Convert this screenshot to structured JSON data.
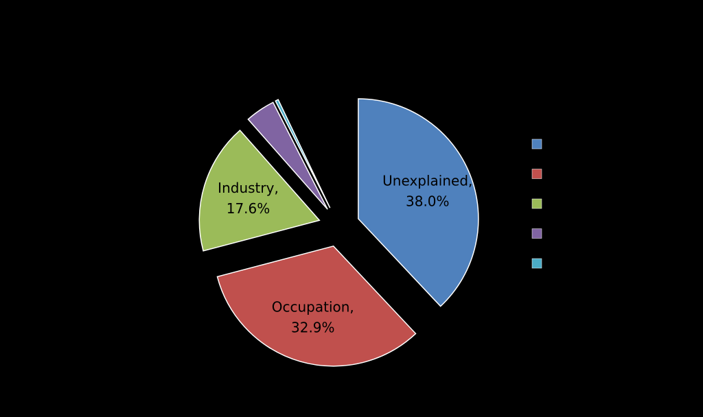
{
  "chart_data": {
    "type": "pie",
    "categories": [
      "Unexplained,",
      "Occupation,",
      "Industry,",
      null,
      null
    ],
    "values": [
      38.0,
      32.9,
      17.6,
      4.0,
      0.4
    ],
    "value_labels": [
      "38.0%",
      "32.9%",
      "17.6%",
      null,
      null
    ],
    "colors": [
      "#4f81bd",
      "#c0504d",
      "#9bbb59",
      "#8064a2",
      "#4bacc6"
    ],
    "exploded": true
  }
}
